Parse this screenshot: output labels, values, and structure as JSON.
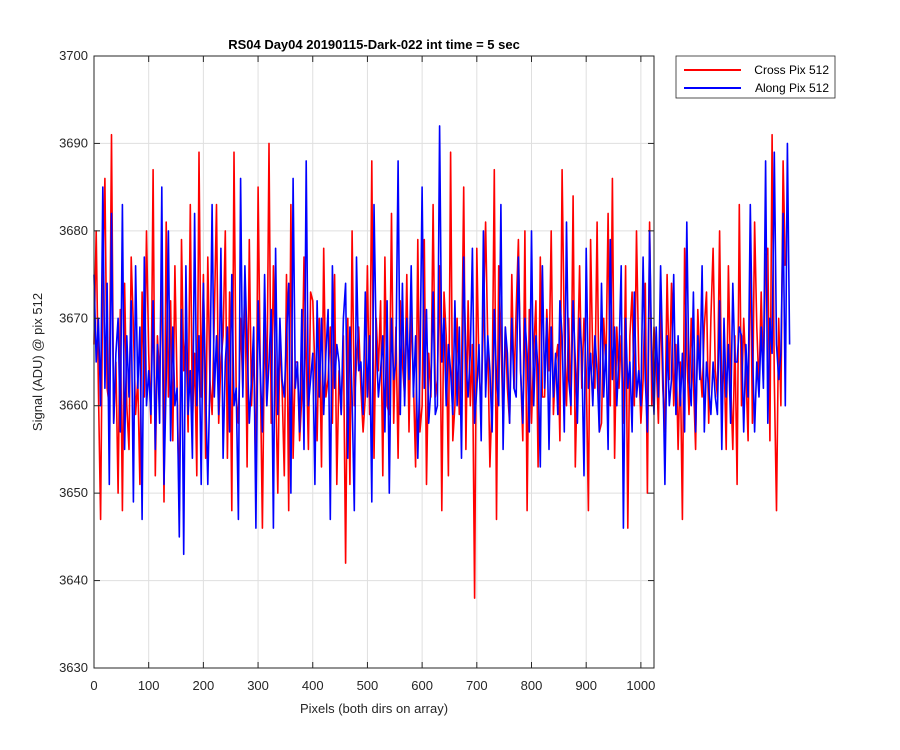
{
  "chart_data": {
    "type": "line",
    "title": "RS04 Day04 20190115-Dark-022 int time = 5 sec",
    "xlabel": "Pixels (both dirs on array)",
    "ylabel": "Signal (ADU) @ pix 512",
    "xlim": [
      0,
      1024
    ],
    "ylim": [
      3630,
      3700
    ],
    "xticks": [
      0,
      100,
      200,
      300,
      400,
      500,
      600,
      700,
      800,
      900,
      1000
    ],
    "yticks": [
      3630,
      3640,
      3650,
      3660,
      3670,
      3680,
      3690,
      3700
    ],
    "grid": true,
    "legend_position": "outside-top-right",
    "x_step": 4,
    "series": [
      {
        "name": "Cross Pix 512",
        "color": "#ff0000",
        "values": [
          3667,
          3680,
          3662,
          3647,
          3675,
          3686,
          3662,
          3660,
          3691,
          3658,
          3665,
          3650,
          3671,
          3648,
          3674,
          3660,
          3655,
          3677,
          3669,
          3659,
          3663,
          3651,
          3673,
          3661,
          3680,
          3666,
          3658,
          3687,
          3652,
          3668,
          3663,
          3676,
          3649,
          3681,
          3661,
          3672,
          3656,
          3676,
          3662,
          3648,
          3679,
          3664,
          3669,
          3657,
          3683,
          3658,
          3666,
          3652,
          3689,
          3661,
          3675,
          3654,
          3677,
          3663,
          3659,
          3670,
          3683,
          3658,
          3665,
          3668,
          3680,
          3654,
          3673,
          3648,
          3689,
          3661,
          3658,
          3670,
          3662,
          3675,
          3653,
          3679,
          3660,
          3667,
          3651,
          3685,
          3664,
          3646,
          3670,
          3660,
          3690,
          3658,
          3676,
          3663,
          3650,
          3668,
          3662,
          3652,
          3675,
          3648,
          3683,
          3654,
          3665,
          3665,
          3656,
          3661,
          3677,
          3666,
          3655,
          3673,
          3672,
          3664,
          3656,
          3670,
          3653,
          3678,
          3661,
          3663,
          3669,
          3658,
          3675,
          3651,
          3664,
          3659,
          3668,
          3642,
          3670,
          3651,
          3680,
          3660,
          3665,
          3669,
          3662,
          3657,
          3661,
          3676,
          3659,
          3688,
          3654,
          3670,
          3664,
          3672,
          3652,
          3677,
          3660,
          3659,
          3682,
          3658,
          3669,
          3654,
          3672,
          3665,
          3661,
          3675,
          3657,
          3671,
          3663,
          3653,
          3679,
          3657,
          3660,
          3679,
          3651,
          3666,
          3661,
          3683,
          3661,
          3663,
          3676,
          3648,
          3673,
          3668,
          3652,
          3689,
          3656,
          3660,
          3670,
          3659,
          3663,
          3685,
          3655,
          3672,
          3660,
          3667,
          3638,
          3678,
          3664,
          3660,
          3670,
          3681,
          3667,
          3653,
          3661,
          3687,
          3647,
          3676,
          3668,
          3658,
          3669,
          3662,
          3658,
          3675,
          3662,
          3671,
          3679,
          3664,
          3656,
          3680,
          3648,
          3671,
          3658,
          3666,
          3672,
          3653,
          3677,
          3661,
          3661,
          3671,
          3664,
          3680,
          3659,
          3665,
          3667,
          3656,
          3687,
          3668,
          3660,
          3670,
          3659,
          3684,
          3653,
          3664,
          3676,
          3662,
          3670,
          3664,
          3648,
          3679,
          3665,
          3662,
          3681,
          3657,
          3658,
          3670,
          3664,
          3682,
          3660,
          3686,
          3654,
          3669,
          3662,
          3668,
          3658,
          3676,
          3646,
          3668,
          3673,
          3660,
          3680,
          3665,
          3658,
          3663,
          3674,
          3650,
          3681,
          3660,
          3669,
          3665,
          3658,
          3672,
          3662,
          3657,
          3675,
          3663,
          3674,
          3660,
          3667,
          3655,
          3665,
          3647,
          3678,
          3666,
          3659,
          3670,
          3663,
          3655,
          3671,
          3665,
          3661,
          3669,
          3673,
          3658,
          3670,
          3678,
          3664,
          3661,
          3680,
          3660,
          3666,
          3655,
          3676,
          3663,
          3655,
          3668,
          3651,
          3683,
          3660,
          3670,
          3664,
          3656,
          3679,
          3658,
          3681,
          3669,
          3662,
          3673,
          3663,
          3677,
          3678,
          3656,
          3691,
          3663,
          3648,
          3670,
          3660,
          3688,
          3676
        ]
      },
      {
        "name": "Along Pix 512",
        "color": "#0000ff",
        "values": [
          3675,
          3665,
          3670,
          3660,
          3685,
          3662,
          3674,
          3651,
          3682,
          3658,
          3666,
          3670,
          3657,
          3683,
          3655,
          3668,
          3661,
          3672,
          3649,
          3676,
          3662,
          3669,
          3647,
          3677,
          3660,
          3664,
          3659,
          3672,
          3655,
          3667,
          3658,
          3685,
          3651,
          3663,
          3680,
          3656,
          3669,
          3660,
          3662,
          3645,
          3671,
          3643,
          3676,
          3659,
          3664,
          3654,
          3682,
          3660,
          3668,
          3651,
          3674,
          3662,
          3651,
          3663,
          3683,
          3661,
          3668,
          3659,
          3678,
          3654,
          3665,
          3669,
          3657,
          3675,
          3660,
          3662,
          3647,
          3686,
          3661,
          3676,
          3667,
          3658,
          3663,
          3669,
          3646,
          3672,
          3664,
          3657,
          3675,
          3660,
          3665,
          3671,
          3646,
          3678,
          3659,
          3670,
          3663,
          3661,
          3668,
          3674,
          3650,
          3686,
          3662,
          3665,
          3657,
          3671,
          3655,
          3688,
          3660,
          3663,
          3666,
          3651,
          3672,
          3661,
          3670,
          3659,
          3666,
          3671,
          3647,
          3676,
          3662,
          3667,
          3665,
          3659,
          3670,
          3674,
          3654,
          3669,
          3661,
          3648,
          3677,
          3664,
          3665,
          3659,
          3673,
          3661,
          3668,
          3649,
          3683,
          3667,
          3661,
          3664,
          3668,
          3657,
          3672,
          3650,
          3670,
          3663,
          3665,
          3688,
          3659,
          3674,
          3660,
          3670,
          3663,
          3676,
          3661,
          3668,
          3654,
          3664,
          3685,
          3662,
          3671,
          3658,
          3662,
          3673,
          3659,
          3660,
          3692,
          3665,
          3670,
          3660,
          3667,
          3664,
          3659,
          3672,
          3660,
          3669,
          3654,
          3677,
          3665,
          3661,
          3666,
          3678,
          3658,
          3662,
          3667,
          3656,
          3680,
          3661,
          3668,
          3664,
          3657,
          3671,
          3663,
          3660,
          3683,
          3655,
          3669,
          3666,
          3658,
          3670,
          3662,
          3661,
          3677,
          3664,
          3658,
          3670,
          3666,
          3657,
          3680,
          3660,
          3668,
          3664,
          3653,
          3676,
          3662,
          3670,
          3655,
          3669,
          3661,
          3666,
          3659,
          3672,
          3668,
          3657,
          3681,
          3663,
          3660,
          3672,
          3665,
          3658,
          3670,
          3666,
          3652,
          3678,
          3662,
          3666,
          3660,
          3668,
          3664,
          3657,
          3674,
          3661,
          3667,
          3655,
          3679,
          3663,
          3669,
          3660,
          3666,
          3676,
          3646,
          3670,
          3662,
          3665,
          3657,
          3673,
          3661,
          3664,
          3660,
          3677,
          3663,
          3657,
          3680,
          3665,
          3659,
          3669,
          3661,
          3676,
          3665,
          3651,
          3668,
          3660,
          3663,
          3675,
          3659,
          3668,
          3660,
          3666,
          3657,
          3681,
          3663,
          3660,
          3673,
          3657,
          3668,
          3663,
          3676,
          3657,
          3665,
          3662,
          3659,
          3665,
          3661,
          3659,
          3672,
          3655,
          3670,
          3661,
          3667,
          3658,
          3674,
          3665,
          3665,
          3669,
          3668,
          3657,
          3667,
          3661,
          3683,
          3667,
          3657,
          3665,
          3661,
          3669,
          3662,
          3688,
          3658,
          3670,
          3666,
          3689,
          3667,
          3663,
          3666,
          3682,
          3660,
          3690,
          3667
        ]
      }
    ]
  }
}
